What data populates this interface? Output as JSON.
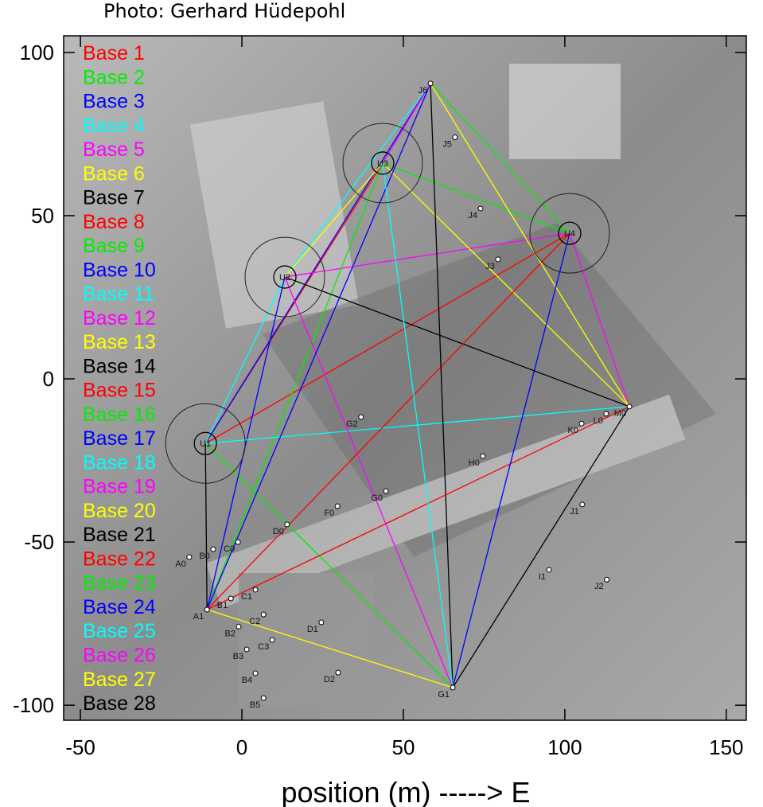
{
  "chart_data": {
    "type": "baseline-map",
    "title": "Photo: Gerhard Hüdepohl",
    "xlabel": "position (m) -----> E",
    "xlim": [
      -55.2,
      156.2
    ],
    "xticks": [
      -50,
      0,
      50,
      100,
      150
    ],
    "ylim": [
      -104.6,
      105.1
    ],
    "yticks": [
      -100,
      -50,
      0,
      50,
      100
    ],
    "stations": [
      {
        "name": "U1",
        "x": -11.3,
        "y": -19.8,
        "ring": true
      },
      {
        "name": "U2",
        "x": 13.3,
        "y": 31.2,
        "ring": true
      },
      {
        "name": "U3",
        "x": 43.6,
        "y": 66.1,
        "ring": true
      },
      {
        "name": "U4",
        "x": 101.5,
        "y": 44.6,
        "ring": true
      },
      {
        "name": "J6",
        "x": 58.4,
        "y": 90.5
      },
      {
        "name": "M0",
        "x": 120,
        "y": -8.5
      },
      {
        "name": "G1",
        "x": 65.3,
        "y": -94.6
      },
      {
        "name": "A1",
        "x": -10.8,
        "y": -70.7
      },
      {
        "name": "D0",
        "x": 14,
        "y": -44.6
      },
      {
        "name": "J5",
        "x": 66,
        "y": 74
      },
      {
        "name": "J4",
        "x": 73.9,
        "y": 52.2
      },
      {
        "name": "J3",
        "x": 79.3,
        "y": 36.6
      },
      {
        "name": "G2",
        "x": 36.9,
        "y": -11.7
      },
      {
        "name": "K0",
        "x": 105.2,
        "y": -13.7
      },
      {
        "name": "L0",
        "x": 112.8,
        "y": -10.7
      },
      {
        "name": "H0",
        "x": 74.6,
        "y": -23.7
      },
      {
        "name": "G0",
        "x": 44.6,
        "y": -34.4
      },
      {
        "name": "F0",
        "x": 29.6,
        "y": -39
      },
      {
        "name": "J1",
        "x": 105.4,
        "y": -38.5
      },
      {
        "name": "I1",
        "x": 95.1,
        "y": -58.5
      },
      {
        "name": "J2",
        "x": 113,
        "y": -61.5
      },
      {
        "name": "A0",
        "x": -16.3,
        "y": -54.6
      },
      {
        "name": "B0",
        "x": -8.9,
        "y": -52.2
      },
      {
        "name": "C0",
        "x": -1.2,
        "y": -50
      },
      {
        "name": "B1",
        "x": -3.4,
        "y": -67.3
      },
      {
        "name": "C1",
        "x": 4.2,
        "y": -64.6
      },
      {
        "name": "C2",
        "x": 6.7,
        "y": -72.2
      },
      {
        "name": "B2",
        "x": -1,
        "y": -75.9
      },
      {
        "name": "D1",
        "x": 24.6,
        "y": -74.6
      },
      {
        "name": "B3",
        "x": 1.5,
        "y": -82.9
      },
      {
        "name": "C3",
        "x": 9.4,
        "y": -80
      },
      {
        "name": "D2",
        "x": 29.8,
        "y": -90
      },
      {
        "name": "B4",
        "x": 4.2,
        "y": -90.2
      },
      {
        "name": "B5",
        "x": 6.7,
        "y": -97.8
      }
    ],
    "baselines": [
      {
        "name": "Base 1",
        "color": "#ff0000",
        "from": "U1",
        "to": "U3"
      },
      {
        "name": "Base 2",
        "color": "#00ee00",
        "from": "U1",
        "to": "G1"
      },
      {
        "name": "Base 3",
        "color": "#0000ff",
        "from": "U1",
        "to": "J6"
      },
      {
        "name": "Base 4",
        "color": "#00ffff",
        "from": "U1",
        "to": "U2"
      },
      {
        "name": "Base 5",
        "color": "#ff00ff",
        "from": "U2",
        "to": "U4"
      },
      {
        "name": "Base 6",
        "color": "#ffff00",
        "from": "A1",
        "to": "G1"
      },
      {
        "name": "Base 7",
        "color": "#000000",
        "from": "U1",
        "to": "A1"
      },
      {
        "name": "Base 8",
        "color": "#ff0000",
        "from": "U1",
        "to": "U4"
      },
      {
        "name": "Base 9",
        "color": "#00ee00",
        "from": "A1",
        "to": "U3"
      },
      {
        "name": "Base 10",
        "color": "#0000ff",
        "from": "A1",
        "to": "U2"
      },
      {
        "name": "Base 11",
        "color": "#00ffff",
        "from": "U1",
        "to": "M0"
      },
      {
        "name": "Base 12",
        "color": "#ff00ff",
        "from": "U2",
        "to": "G1"
      },
      {
        "name": "Base 13",
        "color": "#ffff00",
        "from": "U3",
        "to": "M0"
      },
      {
        "name": "Base 14",
        "color": "#000000",
        "from": "U2",
        "to": "M0"
      },
      {
        "name": "Base 15",
        "color": "#ff0000",
        "from": "A1",
        "to": "U4"
      },
      {
        "name": "Base 16",
        "color": "#00ee00",
        "from": "U3",
        "to": "U4"
      },
      {
        "name": "Base 17",
        "color": "#0000ff",
        "from": "A1",
        "to": "J6"
      },
      {
        "name": "Base 18",
        "color": "#00ffff",
        "from": "U2",
        "to": "J6"
      },
      {
        "name": "Base 19",
        "color": "#ff00ff",
        "from": "U4",
        "to": "M0"
      },
      {
        "name": "Base 20",
        "color": "#ffff00",
        "from": "J6",
        "to": "M0"
      },
      {
        "name": "Base 21",
        "color": "#000000",
        "from": "J6",
        "to": "G1"
      },
      {
        "name": "Base 22",
        "color": "#ff0000",
        "from": "A1",
        "to": "M0"
      },
      {
        "name": "Base 23",
        "color": "#00ee00",
        "from": "J6",
        "to": "U4"
      },
      {
        "name": "Base 24",
        "color": "#0000ff",
        "from": "U4",
        "to": "G1"
      },
      {
        "name": "Base 25",
        "color": "#00ffff",
        "from": "U3",
        "to": "G1"
      },
      {
        "name": "Base 26",
        "color": "#ff00ff",
        "from": "U3",
        "to": "J6"
      },
      {
        "name": "Base 27",
        "color": "#ffff00",
        "from": "U2",
        "to": "U3"
      },
      {
        "name": "Base 28",
        "color": "#000000",
        "from": "M0",
        "to": "G1"
      }
    ]
  }
}
